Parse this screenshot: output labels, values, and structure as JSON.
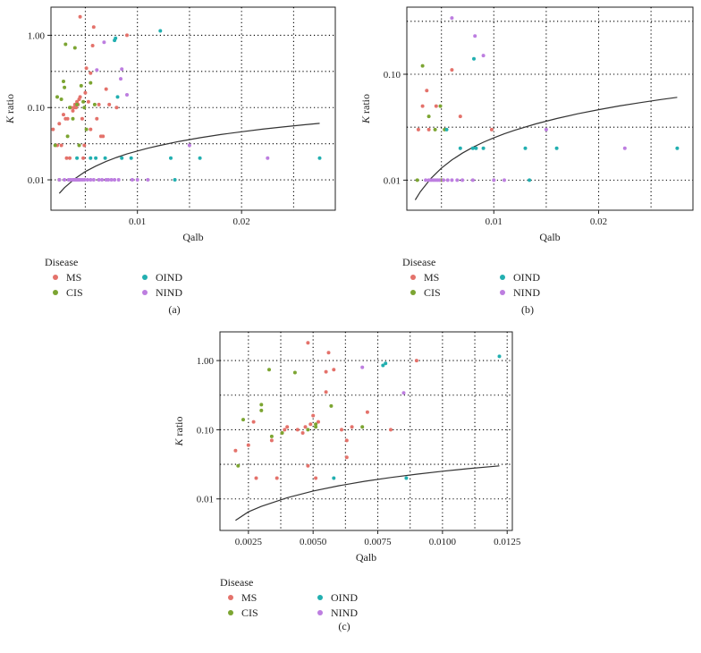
{
  "colors": {
    "MS": "#E4726B",
    "CIS": "#7CA532",
    "OIND": "#22AFB0",
    "NIND": "#BD7EE0",
    "curve": "#333333",
    "grid": "#000000"
  },
  "legend": {
    "title": "Disease",
    "items": [
      {
        "key": "MS",
        "label": "MS"
      },
      {
        "key": "CIS",
        "label": "CIS"
      },
      {
        "key": "OIND",
        "label": "OIND"
      },
      {
        "key": "NIND",
        "label": "NIND"
      }
    ]
  },
  "chart_data": [
    {
      "id": "a",
      "tag": "(a)",
      "type": "scatter",
      "title": "",
      "xlabel": "Qalb",
      "ylabel": "K ratio",
      "xlim": [
        0.0017,
        0.029
      ],
      "ylog": true,
      "ylim": [
        0.0038,
        2.45
      ],
      "xticks": [
        0.01,
        0.02
      ],
      "xtick_labels": [
        "0.01",
        "0.02"
      ],
      "yticks": [
        0.01,
        0.1,
        1.0
      ],
      "ytick_labels": [
        "0.01",
        "0.10",
        "1.00"
      ],
      "grid": true,
      "legend_position": "bottom",
      "curve": [
        [
          0.0025,
          0.0065
        ],
        [
          0.003,
          0.0078
        ],
        [
          0.004,
          0.0104
        ],
        [
          0.005,
          0.013
        ],
        [
          0.006,
          0.0155
        ],
        [
          0.007,
          0.018
        ],
        [
          0.008,
          0.0204
        ],
        [
          0.009,
          0.0228
        ],
        [
          0.01,
          0.0251
        ],
        [
          0.011,
          0.0274
        ],
        [
          0.012,
          0.0296
        ],
        [
          0.014,
          0.034
        ],
        [
          0.016,
          0.0382
        ],
        [
          0.018,
          0.0423
        ],
        [
          0.02,
          0.0463
        ],
        [
          0.022,
          0.0502
        ],
        [
          0.024,
          0.054
        ],
        [
          0.026,
          0.0578
        ],
        [
          0.0275,
          0.0605
        ]
      ],
      "series": [
        {
          "name": "MS",
          "points": [
            [
              0.0019,
              0.05
            ],
            [
              0.0023,
              0.03
            ],
            [
              0.0025,
              0.06
            ],
            [
              0.0027,
              0.03
            ],
            [
              0.0029,
              0.08
            ],
            [
              0.0031,
              0.07
            ],
            [
              0.0033,
              0.07
            ],
            [
              0.0035,
              0.02
            ],
            [
              0.0036,
              0.1
            ],
            [
              0.0038,
              0.09
            ],
            [
              0.0039,
              0.1
            ],
            [
              0.004,
              0.11
            ],
            [
              0.0041,
              0.1
            ],
            [
              0.0042,
              0.12
            ],
            [
              0.0043,
              0.11
            ],
            [
              0.0044,
              0.13
            ],
            [
              0.0045,
              0.14
            ],
            [
              0.0047,
              0.07
            ],
            [
              0.0048,
              0.02
            ],
            [
              0.0049,
              0.03
            ],
            [
              0.005,
              0.16
            ],
            [
              0.0051,
              0.35
            ],
            [
              0.0053,
              0.12
            ],
            [
              0.0055,
              0.05
            ],
            [
              0.0057,
              0.72
            ],
            [
              0.0058,
              1.3
            ],
            [
              0.0061,
              0.07
            ],
            [
              0.0063,
              0.11
            ],
            [
              0.0065,
              0.04
            ],
            [
              0.0067,
              0.04
            ],
            [
              0.007,
              0.18
            ],
            [
              0.0073,
              0.11
            ],
            [
              0.008,
              0.1
            ],
            [
              0.009,
              1.0
            ],
            [
              0.0045,
              1.8
            ],
            [
              0.0032,
              0.02
            ],
            [
              0.0055,
              0.3
            ]
          ]
        },
        {
          "name": "CIS",
          "points": [
            [
              0.0021,
              0.03
            ],
            [
              0.0023,
              0.14
            ],
            [
              0.0025,
              0.01
            ],
            [
              0.0027,
              0.13
            ],
            [
              0.0029,
              0.23
            ],
            [
              0.003,
              0.19
            ],
            [
              0.0031,
              0.75
            ],
            [
              0.0033,
              0.04
            ],
            [
              0.0035,
              0.1
            ],
            [
              0.0038,
              0.07
            ],
            [
              0.004,
              0.67
            ],
            [
              0.0042,
              0.11
            ],
            [
              0.0044,
              0.03
            ],
            [
              0.0046,
              0.2
            ],
            [
              0.0048,
              0.12
            ],
            [
              0.0049,
              0.1
            ],
            [
              0.0051,
              0.05
            ],
            [
              0.0055,
              0.22
            ],
            [
              0.0059,
              0.11
            ]
          ]
        },
        {
          "name": "OIND",
          "points": [
            [
              0.0042,
              0.02
            ],
            [
              0.0055,
              0.02
            ],
            [
              0.006,
              0.02
            ],
            [
              0.0069,
              0.02
            ],
            [
              0.0078,
              0.85
            ],
            [
              0.0079,
              0.91
            ],
            [
              0.0081,
              0.14
            ],
            [
              0.0085,
              0.02
            ],
            [
              0.0094,
              0.02
            ],
            [
              0.0122,
              1.15
            ],
            [
              0.0132,
              0.02
            ],
            [
              0.0136,
              0.01
            ],
            [
              0.016,
              0.02
            ],
            [
              0.0275,
              0.02
            ]
          ]
        },
        {
          "name": "NIND",
          "points": [
            [
              0.0025,
              0.01
            ],
            [
              0.003,
              0.01
            ],
            [
              0.0034,
              0.01
            ],
            [
              0.0036,
              0.01
            ],
            [
              0.0038,
              0.01
            ],
            [
              0.0039,
              0.01
            ],
            [
              0.004,
              0.01
            ],
            [
              0.0041,
              0.01
            ],
            [
              0.0042,
              0.01
            ],
            [
              0.0043,
              0.01
            ],
            [
              0.0044,
              0.01
            ],
            [
              0.0045,
              0.01
            ],
            [
              0.0047,
              0.01
            ],
            [
              0.0049,
              0.01
            ],
            [
              0.0052,
              0.01
            ],
            [
              0.0055,
              0.01
            ],
            [
              0.0058,
              0.01
            ],
            [
              0.0061,
              0.33
            ],
            [
              0.0063,
              0.01
            ],
            [
              0.0066,
              0.01
            ],
            [
              0.0068,
              0.8
            ],
            [
              0.007,
              0.01
            ],
            [
              0.0072,
              0.01
            ],
            [
              0.0075,
              0.01
            ],
            [
              0.0078,
              0.01
            ],
            [
              0.0082,
              0.01
            ],
            [
              0.0084,
              0.25
            ],
            [
              0.0085,
              0.34
            ],
            [
              0.009,
              0.15
            ],
            [
              0.0095,
              0.01
            ],
            [
              0.01,
              0.01
            ],
            [
              0.011,
              0.01
            ],
            [
              0.015,
              0.03
            ],
            [
              0.0225,
              0.02
            ]
          ]
        }
      ]
    },
    {
      "id": "b",
      "tag": "(b)",
      "type": "scatter",
      "title": "",
      "xlabel": "Qalb",
      "ylabel": "K ratio",
      "xlim": [
        0.0017,
        0.029
      ],
      "ylog": true,
      "ylim": [
        0.0052,
        0.43
      ],
      "xticks": [
        0.01,
        0.02
      ],
      "xtick_labels": [
        "0.01",
        "0.02"
      ],
      "yticks": [
        0.01,
        0.1
      ],
      "ytick_labels": [
        "0.01",
        "0.10"
      ],
      "grid": true,
      "legend_position": "bottom",
      "curve": [
        [
          0.0025,
          0.0065
        ],
        [
          0.003,
          0.0078
        ],
        [
          0.004,
          0.0104
        ],
        [
          0.005,
          0.013
        ],
        [
          0.006,
          0.0155
        ],
        [
          0.007,
          0.018
        ],
        [
          0.008,
          0.0204
        ],
        [
          0.009,
          0.0228
        ],
        [
          0.01,
          0.0251
        ],
        [
          0.011,
          0.0274
        ],
        [
          0.012,
          0.0296
        ],
        [
          0.014,
          0.034
        ],
        [
          0.016,
          0.0382
        ],
        [
          0.018,
          0.0423
        ],
        [
          0.02,
          0.0463
        ],
        [
          0.022,
          0.0502
        ],
        [
          0.024,
          0.054
        ],
        [
          0.026,
          0.0578
        ],
        [
          0.0275,
          0.0605
        ]
      ],
      "series": [
        {
          "name": "MS",
          "points": [
            [
              0.0028,
              0.03
            ],
            [
              0.0032,
              0.05
            ],
            [
              0.0036,
              0.07
            ],
            [
              0.0038,
              0.03
            ],
            [
              0.0045,
              0.05
            ],
            [
              0.006,
              0.11
            ],
            [
              0.0068,
              0.04
            ],
            [
              0.0098,
              0.03
            ]
          ]
        },
        {
          "name": "CIS",
          "points": [
            [
              0.0027,
              0.01
            ],
            [
              0.0032,
              0.12
            ],
            [
              0.0038,
              0.04
            ],
            [
              0.0044,
              0.03
            ],
            [
              0.0049,
              0.05
            ],
            [
              0.0053,
              0.03
            ],
            [
              0.005,
              0.01
            ]
          ]
        },
        {
          "name": "OIND",
          "points": [
            [
              0.0055,
              0.03
            ],
            [
              0.0068,
              0.02
            ],
            [
              0.008,
              0.02
            ],
            [
              0.0083,
              0.02
            ],
            [
              0.0081,
              0.14
            ],
            [
              0.009,
              0.02
            ],
            [
              0.013,
              0.02
            ],
            [
              0.0134,
              0.01
            ],
            [
              0.016,
              0.02
            ],
            [
              0.0275,
              0.02
            ]
          ]
        },
        {
          "name": "NIND",
          "points": [
            [
              0.0035,
              0.01
            ],
            [
              0.0038,
              0.01
            ],
            [
              0.004,
              0.01
            ],
            [
              0.0042,
              0.01
            ],
            [
              0.0044,
              0.01
            ],
            [
              0.0046,
              0.01
            ],
            [
              0.0048,
              0.01
            ],
            [
              0.0052,
              0.01
            ],
            [
              0.0056,
              0.01
            ],
            [
              0.006,
              0.01
            ],
            [
              0.0065,
              0.01
            ],
            [
              0.007,
              0.01
            ],
            [
              0.008,
              0.01
            ],
            [
              0.01,
              0.01
            ],
            [
              0.011,
              0.01
            ],
            [
              0.006,
              0.34
            ],
            [
              0.0082,
              0.23
            ],
            [
              0.009,
              0.15
            ],
            [
              0.015,
              0.03
            ],
            [
              0.0225,
              0.02
            ]
          ]
        }
      ]
    },
    {
      "id": "c",
      "tag": "(c)",
      "type": "scatter",
      "title": "",
      "xlabel": "Qalb",
      "ylabel": "K ratio",
      "xlim": [
        0.0014,
        0.0127
      ],
      "ylog": true,
      "ylim": [
        0.0035,
        2.6
      ],
      "xticks": [
        0.0025,
        0.005,
        0.0075,
        0.01,
        0.0125
      ],
      "xtick_labels": [
        "0.0025",
        "0.0050",
        "0.0075",
        "0.0100",
        "0.0125"
      ],
      "yticks": [
        0.01,
        0.1,
        1.0
      ],
      "ytick_labels": [
        "0.01",
        "0.10",
        "1.00"
      ],
      "grid": true,
      "legend_position": "bottom",
      "curve": [
        [
          0.002,
          0.0049
        ],
        [
          0.0025,
          0.0065
        ],
        [
          0.003,
          0.0078
        ],
        [
          0.004,
          0.0104
        ],
        [
          0.005,
          0.013
        ],
        [
          0.006,
          0.0155
        ],
        [
          0.007,
          0.018
        ],
        [
          0.008,
          0.0204
        ],
        [
          0.009,
          0.0228
        ],
        [
          0.01,
          0.0251
        ],
        [
          0.011,
          0.0274
        ],
        [
          0.0122,
          0.03
        ]
      ],
      "series": [
        {
          "name": "MS",
          "points": [
            [
              0.002,
              0.05
            ],
            [
              0.0025,
              0.06
            ],
            [
              0.0027,
              0.13
            ],
            [
              0.0028,
              0.02
            ],
            [
              0.0034,
              0.07
            ],
            [
              0.0036,
              0.02
            ],
            [
              0.0038,
              0.09
            ],
            [
              0.0039,
              0.1
            ],
            [
              0.004,
              0.11
            ],
            [
              0.0044,
              0.1
            ],
            [
              0.0046,
              0.09
            ],
            [
              0.0047,
              0.11
            ],
            [
              0.0048,
              0.03
            ],
            [
              0.0049,
              0.12
            ],
            [
              0.005,
              0.16
            ],
            [
              0.0051,
              0.02
            ],
            [
              0.0052,
              0.13
            ],
            [
              0.0055,
              0.35
            ],
            [
              0.0055,
              0.69
            ],
            [
              0.0056,
              1.3
            ],
            [
              0.0058,
              0.74
            ],
            [
              0.0061,
              0.1
            ],
            [
              0.0063,
              0.04
            ],
            [
              0.0063,
              0.07
            ],
            [
              0.0065,
              0.11
            ],
            [
              0.0071,
              0.18
            ],
            [
              0.008,
              0.1
            ],
            [
              0.009,
              1.0
            ],
            [
              0.0048,
              1.8
            ]
          ]
        },
        {
          "name": "CIS",
          "points": [
            [
              0.0021,
              0.03
            ],
            [
              0.0023,
              0.14
            ],
            [
              0.003,
              0.23
            ],
            [
              0.003,
              0.19
            ],
            [
              0.0033,
              0.74
            ],
            [
              0.0034,
              0.08
            ],
            [
              0.0038,
              0.09
            ],
            [
              0.0043,
              0.67
            ],
            [
              0.0048,
              0.1
            ],
            [
              0.0051,
              0.11
            ],
            [
              0.0051,
              0.12
            ],
            [
              0.0057,
              0.22
            ],
            [
              0.0069,
              0.11
            ]
          ]
        },
        {
          "name": "OIND",
          "points": [
            [
              0.0058,
              0.02
            ],
            [
              0.0077,
              0.85
            ],
            [
              0.0078,
              0.91
            ],
            [
              0.0086,
              0.02
            ],
            [
              0.0122,
              1.15
            ]
          ]
        },
        {
          "name": "NIND",
          "points": [
            [
              0.0069,
              0.8
            ],
            [
              0.0085,
              0.34
            ]
          ]
        }
      ]
    }
  ]
}
